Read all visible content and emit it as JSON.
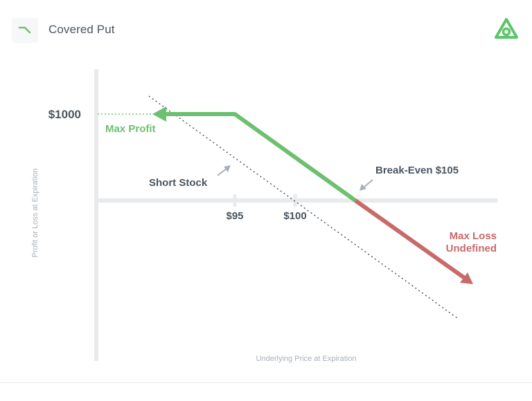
{
  "header": {
    "title": "Covered Put",
    "strategy_icon": "bearish-line-icon",
    "brand_icon": "brand-logo-icon"
  },
  "diagram": {
    "y_axis_label": "Profit or Loss at Expiration",
    "x_axis_label": "Underlying Price at Expiration",
    "y_tick_label": "$1000",
    "x_tick_labels": [
      "$95",
      "$100"
    ],
    "max_profit_label": "Max Profit",
    "short_stock_label": "Short Stock",
    "break_even_label": "Break-Even $105",
    "max_loss_label_line1": "Max Loss",
    "max_loss_label_line2": "Undefined",
    "colors": {
      "profit": "#6cc070",
      "loss": "#c96a6a",
      "axis": "#e9eaeb",
      "label": "#4a5560",
      "muted": "#a9b0b7",
      "brand": "#5cc46a"
    }
  }
}
